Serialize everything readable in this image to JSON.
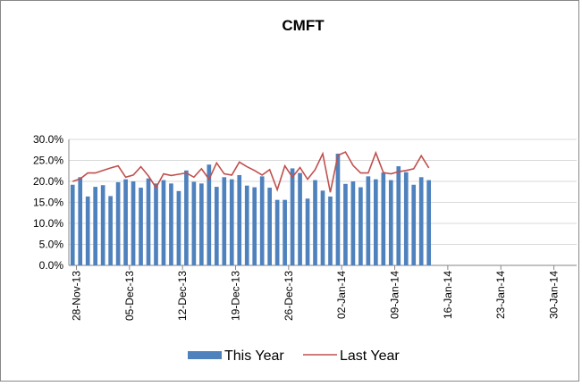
{
  "chart_data": {
    "type": "bar-line",
    "title": "CMFT",
    "x": [
      "2013-11-27",
      "2013-11-28",
      "2013-11-29",
      "2013-11-30",
      "2013-12-01",
      "2013-12-02",
      "2013-12-03",
      "2013-12-04",
      "2013-12-05",
      "2013-12-06",
      "2013-12-07",
      "2013-12-08",
      "2013-12-09",
      "2013-12-10",
      "2013-12-11",
      "2013-12-12",
      "2013-12-13",
      "2013-12-14",
      "2013-12-15",
      "2013-12-16",
      "2013-12-17",
      "2013-12-18",
      "2013-12-19",
      "2013-12-20",
      "2013-12-21",
      "2013-12-22",
      "2013-12-23",
      "2013-12-24",
      "2013-12-25",
      "2013-12-26",
      "2013-12-27",
      "2013-12-28",
      "2013-12-29",
      "2013-12-30",
      "2013-12-31",
      "2014-01-01",
      "2014-01-02",
      "2014-01-03",
      "2014-01-04",
      "2014-01-05",
      "2014-01-06",
      "2014-01-07",
      "2014-01-08",
      "2014-01-09",
      "2014-01-10",
      "2014-01-11",
      "2014-01-12",
      "2014-01-13"
    ],
    "series": [
      {
        "name": "This Year",
        "type": "bar",
        "color": "#4f81bd",
        "values": [
          19.2,
          21.0,
          16.4,
          18.7,
          19.1,
          16.5,
          19.8,
          20.5,
          20.0,
          18.5,
          20.7,
          19.5,
          20.3,
          19.5,
          17.7,
          22.6,
          19.9,
          19.5,
          24.0,
          18.7,
          21.0,
          20.5,
          21.5,
          19.0,
          18.6,
          21.2,
          18.5,
          15.6,
          15.6,
          23.1,
          22.0,
          15.9,
          20.3,
          17.8,
          16.4,
          26.6,
          19.4,
          20.0,
          18.6,
          21.2,
          20.5,
          22.1,
          20.3,
          23.6,
          22.2,
          19.2,
          21.0,
          20.3
        ]
      },
      {
        "name": "Last Year",
        "type": "line",
        "color": "#c0504d",
        "values": [
          20.0,
          20.6,
          22.0,
          22.0,
          22.6,
          23.2,
          23.7,
          21.0,
          21.5,
          23.5,
          21.3,
          18.5,
          21.8,
          21.4,
          21.7,
          22.0,
          21.0,
          23.0,
          20.5,
          24.4,
          21.8,
          21.5,
          24.6,
          23.5,
          22.6,
          21.5,
          22.8,
          18.0,
          23.7,
          21.0,
          23.3,
          20.5,
          22.8,
          26.6,
          17.4,
          26.2,
          27.0,
          23.8,
          22.0,
          22.0,
          26.8,
          22.1,
          21.8,
          22.3,
          22.6,
          23.0,
          26.1,
          23.2
        ]
      }
    ],
    "xlim": [
      "2013-11-27",
      "2014-02-02"
    ],
    "xticks": [
      {
        "value": "2013-11-28",
        "label": "28-Nov-13"
      },
      {
        "value": "2013-12-05",
        "label": "05-Dec-13"
      },
      {
        "value": "2013-12-12",
        "label": "12-Dec-13"
      },
      {
        "value": "2013-12-19",
        "label": "19-Dec-13"
      },
      {
        "value": "2013-12-26",
        "label": "26-Dec-13"
      },
      {
        "value": "2014-01-02",
        "label": "02-Jan-14"
      },
      {
        "value": "2014-01-09",
        "label": "09-Jan-14"
      },
      {
        "value": "2014-01-16",
        "label": "16-Jan-14"
      },
      {
        "value": "2014-01-23",
        "label": "23-Jan-14"
      },
      {
        "value": "2014-01-30",
        "label": "30-Jan-14"
      }
    ],
    "ylim": [
      0,
      30
    ],
    "yticks": [
      {
        "value": 0,
        "label": "0.0%"
      },
      {
        "value": 5,
        "label": "5.0%"
      },
      {
        "value": 10,
        "label": "10.0%"
      },
      {
        "value": 15,
        "label": "15.0%"
      },
      {
        "value": 20,
        "label": "20.0%"
      },
      {
        "value": 25,
        "label": "25.0%"
      },
      {
        "value": 30,
        "label": "30.0%"
      }
    ],
    "grid": true,
    "legend": "bottom"
  }
}
